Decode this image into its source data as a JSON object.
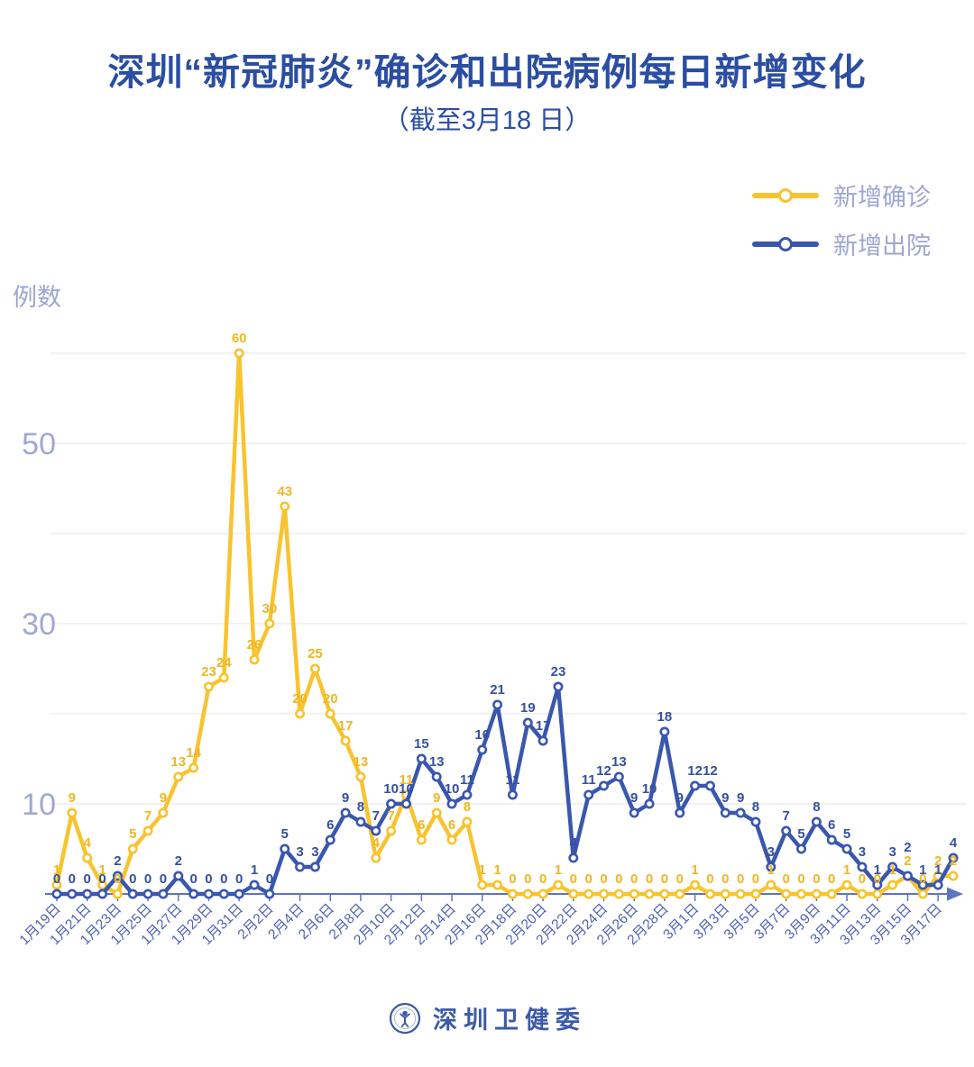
{
  "title": "深圳“新冠肺炎”确诊和出院病例每日新增变化",
  "subtitle": "（截至3月18 日）",
  "legend": {
    "items": [
      {
        "label": "新增确诊",
        "color": "#F8C32E"
      },
      {
        "label": "新增出院",
        "color": "#3A57AE"
      }
    ]
  },
  "y_axis": {
    "name": "例数",
    "tick_labels": [
      "50",
      "30",
      "10"
    ],
    "tick_values": [
      50,
      30,
      10
    ],
    "gridline_values": [
      10,
      20,
      30,
      40,
      50,
      60
    ]
  },
  "x_axis": {
    "label_every": 2
  },
  "colors": {
    "title": "#2B4EA2",
    "gridline": "#E4E5E9",
    "axis_line": "#5B74C4",
    "axis_label": "#9FA8D4",
    "x_label": "#4E62B5",
    "legend_text": "#9DA6D2",
    "confirmed": "#F8C32E",
    "confirmed_label": "#EFB723",
    "discharged": "#3A57AE",
    "discharged_label": "#34509F",
    "footer_blue": "#3C5AA8"
  },
  "chart_data": {
    "type": "line",
    "title": "深圳“新冠肺炎”确诊和出院病例每日新增变化（截至3月18日）",
    "xlabel": "",
    "ylabel": "例数",
    "ylim": [
      0,
      64
    ],
    "grid": true,
    "legend_position": "top-right",
    "point_labels_shown": true,
    "x": [
      "1月19日",
      "1月20日",
      "1月21日",
      "1月22日",
      "1月23日",
      "1月24日",
      "1月25日",
      "1月26日",
      "1月27日",
      "1月28日",
      "1月29日",
      "1月30日",
      "1月31日",
      "2月1日",
      "2月2日",
      "2月3日",
      "2月4日",
      "2月5日",
      "2月6日",
      "2月7日",
      "2月8日",
      "2月9日",
      "2月10日",
      "2月11日",
      "2月12日",
      "2月13日",
      "2月14日",
      "2月15日",
      "2月16日",
      "2月17日",
      "2月18日",
      "2月19日",
      "2月20日",
      "2月21日",
      "2月22日",
      "2月23日",
      "2月24日",
      "2月25日",
      "2月26日",
      "2月27日",
      "2月28日",
      "2月29日",
      "3月1日",
      "3月2日",
      "3月3日",
      "3月4日",
      "3月5日",
      "3月6日",
      "3月7日",
      "3月8日",
      "3月9日",
      "3月10日",
      "3月11日",
      "3月12日",
      "3月13日",
      "3月14日",
      "3月15日",
      "3月16日",
      "3月17日",
      "3月18日"
    ],
    "series": [
      {
        "name": "新增确诊",
        "color": "#F8C32E",
        "label_color": "#EFB723",
        "values": [
          1,
          9,
          4,
          1,
          0,
          5,
          7,
          9,
          13,
          14,
          23,
          24,
          60,
          26,
          30,
          43,
          20,
          25,
          20,
          17,
          13,
          4,
          7,
          11,
          6,
          9,
          6,
          8,
          1,
          1,
          0,
          0,
          0,
          1,
          0,
          0,
          0,
          0,
          0,
          0,
          0,
          0,
          1,
          0,
          0,
          0,
          0,
          1,
          0,
          0,
          0,
          0,
          1,
          0,
          0,
          1,
          2,
          0,
          2,
          2
        ]
      },
      {
        "name": "新增出院",
        "color": "#3A57AE",
        "label_color": "#34509F",
        "values": [
          0,
          0,
          0,
          0,
          2,
          0,
          0,
          0,
          2,
          0,
          0,
          0,
          0,
          1,
          0,
          5,
          3,
          3,
          6,
          9,
          8,
          7,
          10,
          10,
          15,
          13,
          10,
          11,
          16,
          21,
          11,
          19,
          17,
          23,
          4,
          11,
          12,
          13,
          9,
          10,
          18,
          9,
          12,
          12,
          9,
          9,
          8,
          3,
          7,
          5,
          8,
          6,
          5,
          3,
          1,
          3,
          2,
          1,
          1,
          4
        ]
      }
    ]
  },
  "footer": {
    "org_name": "深圳卫健委"
  }
}
